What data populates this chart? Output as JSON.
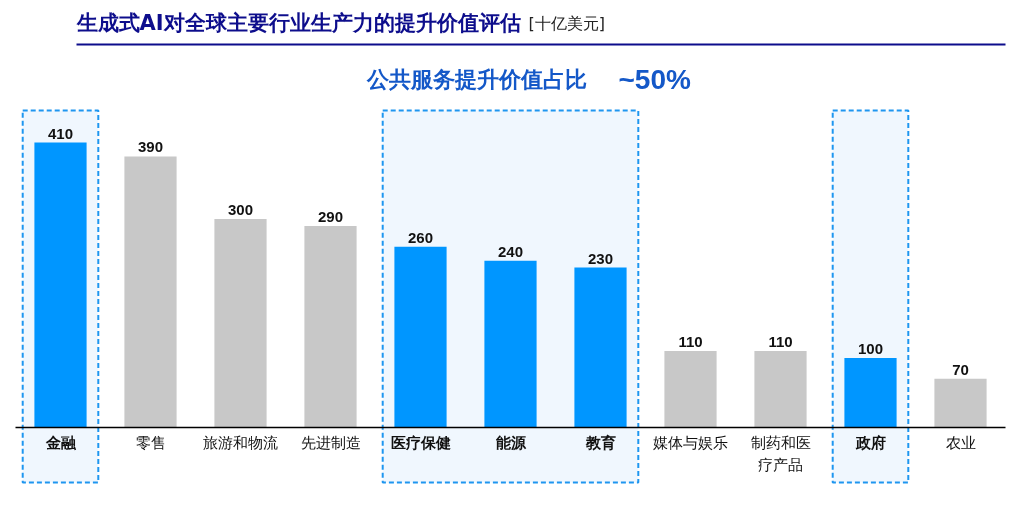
{
  "chart_data": {
    "type": "bar",
    "title": "生成式AI对全球主要行业生产力的提升价值评估",
    "subtitle": "公共服务提升价值占比",
    "annotations": [
      "[十亿美元]",
      "~50%"
    ],
    "categories": [
      "金融",
      "零售",
      "旅游和物流",
      "先进制造",
      "医疗保健",
      "能源",
      "教育",
      "媒体与娱乐",
      "制药和医疗产品",
      "政府",
      "农业"
    ],
    "values": [
      410,
      390,
      300,
      290,
      260,
      240,
      230,
      110,
      110,
      100,
      70
    ],
    "colors": [
      "#0096ff",
      "#c8c8c8",
      "#c8c8c8",
      "#c8c8c8",
      "#0096ff",
      "#0096ff",
      "#0096ff",
      "#c8c8c8",
      "#c8c8c8",
      "#0096ff",
      "#c8c8c8"
    ],
    "data_labels": true,
    "bands": [
      {
        "axis": "x",
        "from": "金融",
        "to": "金融",
        "color": "#f0f7fe"
      },
      {
        "axis": "x",
        "from": "医疗保健",
        "to": "教育",
        "color": "#f0f7fe"
      },
      {
        "axis": "x",
        "from": "政府",
        "to": "政府",
        "color": "#f0f7fe"
      }
    ]
  }
}
